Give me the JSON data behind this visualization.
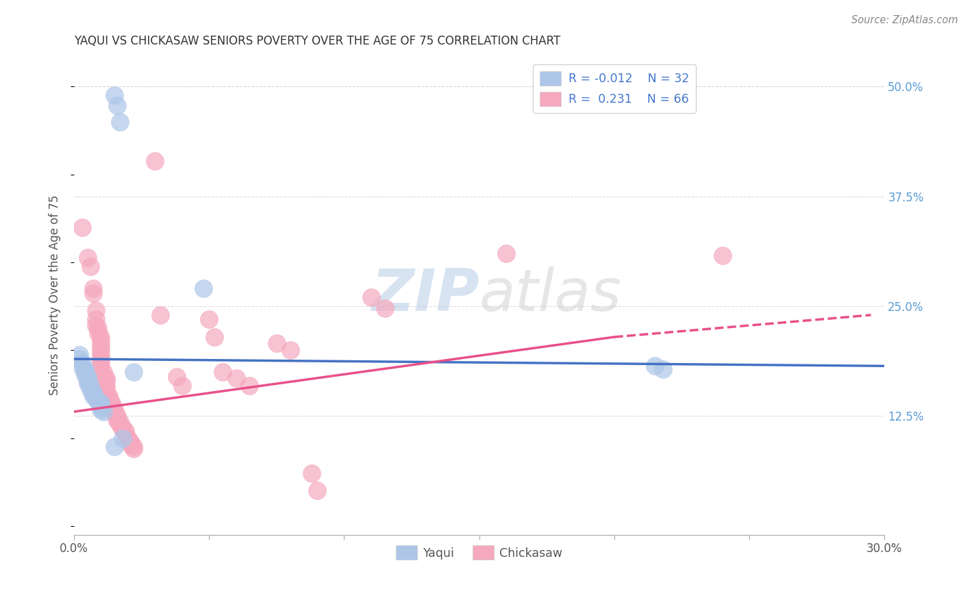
{
  "title": "YAQUI VS CHICKASAW SENIORS POVERTY OVER THE AGE OF 75 CORRELATION CHART",
  "source": "Source: ZipAtlas.com",
  "ylabel": "Seniors Poverty Over the Age of 75",
  "xlim": [
    0.0,
    0.3
  ],
  "ylim": [
    -0.01,
    0.535
  ],
  "yticks_right": [
    0.5,
    0.375,
    0.25,
    0.125
  ],
  "ytick_labels_right": [
    "50.0%",
    "37.5%",
    "25.0%",
    "12.5%"
  ],
  "background_color": "#ffffff",
  "grid_color": "#d8d8d8",
  "yaqui_color": "#adc6e8",
  "chickasaw_color": "#f5a8be",
  "yaqui_line_color": "#4472c4",
  "chickasaw_line_color": "#e8508a",
  "R_yaqui": -0.012,
  "N_yaqui": 32,
  "R_chickasaw": 0.231,
  "N_chickasaw": 66,
  "legend_R_color": "#4477cc",
  "watermark": "ZIPatlas",
  "yaqui_line_x0": 0.0,
  "yaqui_line_y0": 0.19,
  "yaqui_line_x1": 0.295,
  "yaqui_line_y1": 0.182,
  "chickasaw_line_x0": 0.0,
  "chickasaw_line_y0": 0.13,
  "chickasaw_line_x_solid_end": 0.2,
  "chickasaw_line_y_solid_end": 0.215,
  "chickasaw_line_x1": 0.295,
  "chickasaw_line_y1": 0.24,
  "yaqui_points": [
    [
      0.015,
      0.49
    ],
    [
      0.016,
      0.478
    ],
    [
      0.017,
      0.46
    ],
    [
      0.048,
      0.27
    ],
    [
      0.002,
      0.195
    ],
    [
      0.002,
      0.19
    ],
    [
      0.003,
      0.185
    ],
    [
      0.003,
      0.18
    ],
    [
      0.004,
      0.178
    ],
    [
      0.004,
      0.175
    ],
    [
      0.004,
      0.172
    ],
    [
      0.005,
      0.17
    ],
    [
      0.005,
      0.168
    ],
    [
      0.005,
      0.165
    ],
    [
      0.005,
      0.162
    ],
    [
      0.006,
      0.16
    ],
    [
      0.006,
      0.155
    ],
    [
      0.007,
      0.152
    ],
    [
      0.007,
      0.15
    ],
    [
      0.007,
      0.148
    ],
    [
      0.008,
      0.145
    ],
    [
      0.009,
      0.142
    ],
    [
      0.01,
      0.14
    ],
    [
      0.01,
      0.138
    ],
    [
      0.01,
      0.135
    ],
    [
      0.01,
      0.132
    ],
    [
      0.011,
      0.13
    ],
    [
      0.015,
      0.09
    ],
    [
      0.018,
      0.1
    ],
    [
      0.022,
      0.175
    ],
    [
      0.215,
      0.182
    ],
    [
      0.218,
      0.178
    ]
  ],
  "chickasaw_points": [
    [
      0.003,
      0.34
    ],
    [
      0.005,
      0.305
    ],
    [
      0.006,
      0.295
    ],
    [
      0.007,
      0.27
    ],
    [
      0.007,
      0.265
    ],
    [
      0.008,
      0.245
    ],
    [
      0.008,
      0.235
    ],
    [
      0.008,
      0.228
    ],
    [
      0.009,
      0.225
    ],
    [
      0.009,
      0.22
    ],
    [
      0.01,
      0.215
    ],
    [
      0.01,
      0.21
    ],
    [
      0.01,
      0.205
    ],
    [
      0.01,
      0.2
    ],
    [
      0.01,
      0.195
    ],
    [
      0.01,
      0.19
    ],
    [
      0.01,
      0.185
    ],
    [
      0.01,
      0.18
    ],
    [
      0.011,
      0.175
    ],
    [
      0.011,
      0.17
    ],
    [
      0.012,
      0.168
    ],
    [
      0.012,
      0.165
    ],
    [
      0.012,
      0.16
    ],
    [
      0.012,
      0.155
    ],
    [
      0.012,
      0.15
    ],
    [
      0.013,
      0.148
    ],
    [
      0.013,
      0.145
    ],
    [
      0.013,
      0.142
    ],
    [
      0.014,
      0.14
    ],
    [
      0.014,
      0.138
    ],
    [
      0.014,
      0.135
    ],
    [
      0.015,
      0.132
    ],
    [
      0.015,
      0.13
    ],
    [
      0.015,
      0.128
    ],
    [
      0.016,
      0.125
    ],
    [
      0.016,
      0.122
    ],
    [
      0.016,
      0.12
    ],
    [
      0.017,
      0.118
    ],
    [
      0.017,
      0.115
    ],
    [
      0.018,
      0.112
    ],
    [
      0.018,
      0.11
    ],
    [
      0.019,
      0.108
    ],
    [
      0.019,
      0.105
    ],
    [
      0.02,
      0.1
    ],
    [
      0.02,
      0.098
    ],
    [
      0.021,
      0.095
    ],
    [
      0.021,
      0.092
    ],
    [
      0.022,
      0.09
    ],
    [
      0.022,
      0.088
    ],
    [
      0.03,
      0.415
    ],
    [
      0.032,
      0.24
    ],
    [
      0.038,
      0.17
    ],
    [
      0.04,
      0.16
    ],
    [
      0.05,
      0.235
    ],
    [
      0.052,
      0.215
    ],
    [
      0.055,
      0.175
    ],
    [
      0.06,
      0.168
    ],
    [
      0.065,
      0.16
    ],
    [
      0.075,
      0.208
    ],
    [
      0.08,
      0.2
    ],
    [
      0.088,
      0.06
    ],
    [
      0.09,
      0.04
    ],
    [
      0.11,
      0.26
    ],
    [
      0.115,
      0.248
    ],
    [
      0.16,
      0.31
    ],
    [
      0.24,
      0.308
    ]
  ]
}
